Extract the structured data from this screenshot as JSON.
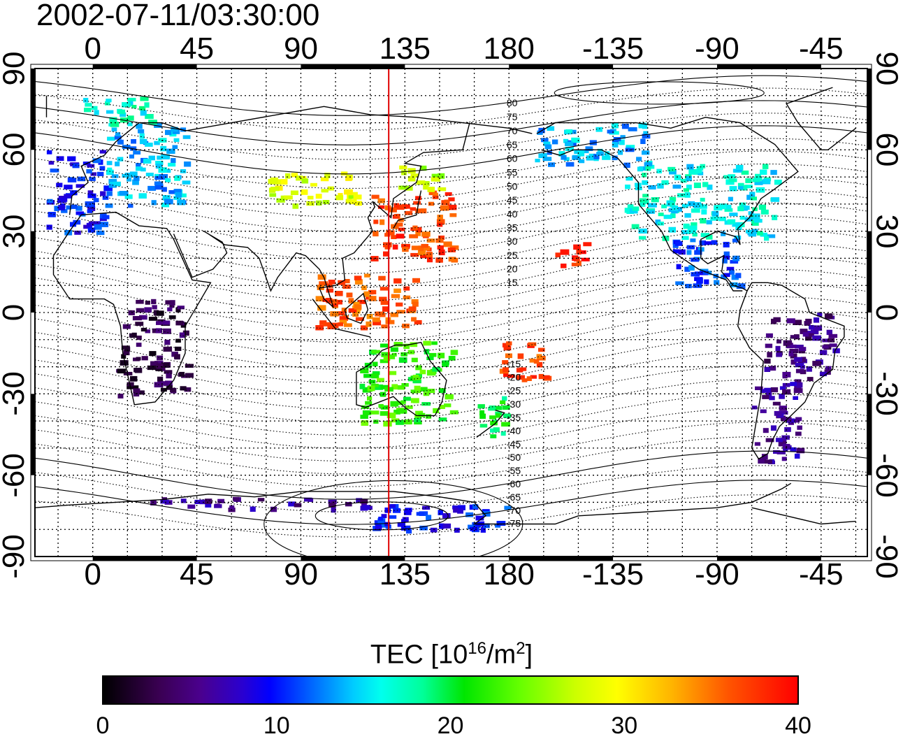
{
  "title": "2002-07-11/03:30:00",
  "longitude_ticks": [
    "0",
    "45",
    "90",
    "135",
    "180",
    "-135",
    "-90",
    "-45"
  ],
  "latitude_ticks": [
    "90",
    "60",
    "30",
    "0",
    "-30",
    "-60",
    "-90"
  ],
  "contour_labels_north": [
    "80",
    "75",
    "70",
    "65",
    "60",
    "55",
    "50",
    "45",
    "40",
    "35",
    "30",
    "25",
    "20",
    "15"
  ],
  "contour_labels_south": [
    "-15",
    "-20",
    "-25",
    "-30",
    "-35",
    "-40",
    "-45",
    "-50",
    "-55",
    "-60",
    "-65",
    "-70",
    "-75"
  ],
  "colorbar": {
    "label_main": "TEC  [10",
    "label_exp1": "16",
    "label_mid": "/m",
    "label_exp2": "2",
    "label_end": "]",
    "ticks": [
      "0",
      "10",
      "20",
      "30",
      "40"
    ],
    "range": [
      0,
      40
    ]
  },
  "colors": {
    "meridian_line": "#e00000",
    "coastline": "#000000"
  },
  "chart_data": {
    "type": "heatmap",
    "title": "2002-07-11/03:30:00",
    "xlabel": "",
    "ylabel": "",
    "xlim": [
      -25,
      335
    ],
    "ylim": [
      -90,
      90
    ],
    "grid": true,
    "colorbar_label": "TEC  [10^16/m^2]",
    "value_range": [
      0,
      40
    ],
    "marked_longitude": 128,
    "regions": [
      {
        "lon": [
          -20,
          5
        ],
        "lat": [
          30,
          60
        ],
        "tec": 10
      },
      {
        "lon": [
          5,
          40
        ],
        "lat": [
          40,
          70
        ],
        "tec": 14
      },
      {
        "lon": [
          -5,
          25
        ],
        "lat": [
          70,
          80
        ],
        "tec": 17
      },
      {
        "lon": [
          75,
          115
        ],
        "lat": [
          40,
          52
        ],
        "tec": 28
      },
      {
        "lon": [
          120,
          155
        ],
        "lat": [
          20,
          45
        ],
        "tec": 37
      },
      {
        "lon": [
          130,
          150
        ],
        "lat": [
          45,
          55
        ],
        "tec": 26
      },
      {
        "lon": [
          -160,
          -145
        ],
        "lat": [
          18,
          27
        ],
        "tec": 38
      },
      {
        "lon": [
          -130,
          -65
        ],
        "lat": [
          28,
          55
        ],
        "tec": 16
      },
      {
        "lon": [
          -170,
          -120
        ],
        "lat": [
          55,
          70
        ],
        "tec": 14
      },
      {
        "lon": [
          -110,
          -80
        ],
        "lat": [
          10,
          28
        ],
        "tec": 11
      },
      {
        "lon": [
          -70,
          -40
        ],
        "lat": [
          -25,
          0
        ],
        "tec": 5
      },
      {
        "lon": [
          -75,
          -55
        ],
        "lat": [
          -55,
          -25
        ],
        "tec": 6
      },
      {
        "lon": [
          10,
          40
        ],
        "lat": [
          -30,
          5
        ],
        "tec": 3
      },
      {
        "lon": [
          115,
          155
        ],
        "lat": [
          -40,
          -10
        ],
        "tec": 22
      },
      {
        "lon": [
          165,
          180
        ],
        "lat": [
          -45,
          -30
        ],
        "tec": 20
      },
      {
        "lon": [
          175,
          -165
        ],
        "lat": [
          -25,
          -10
        ],
        "tec": 37
      },
      {
        "lon": [
          95,
          140
        ],
        "lat": [
          -5,
          15
        ],
        "tec": 36
      },
      {
        "lon": [
          20,
          120
        ],
        "lat": [
          -72,
          -68
        ],
        "tec": 6
      },
      {
        "lon": [
          120,
          180
        ],
        "lat": [
          -80,
          -70
        ],
        "tec": 10
      }
    ]
  }
}
